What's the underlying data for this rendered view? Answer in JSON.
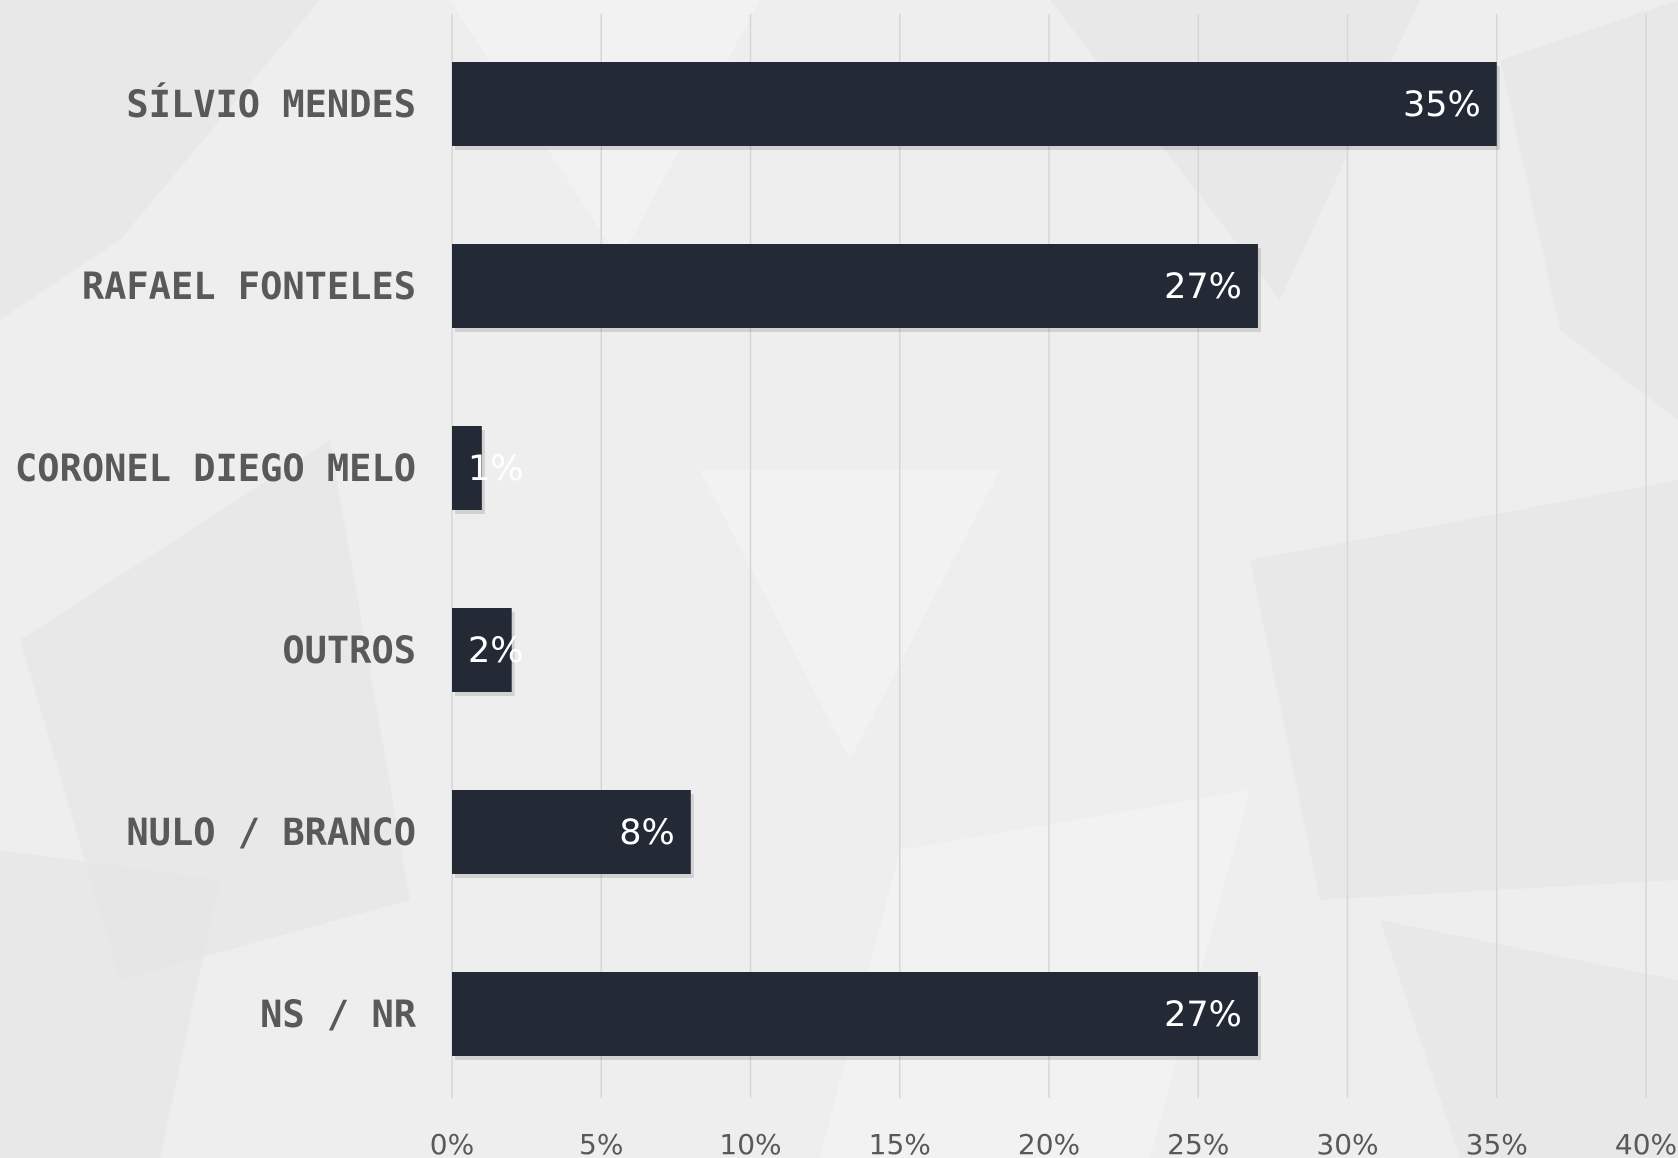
{
  "chart_data": {
    "type": "bar",
    "orientation": "horizontal",
    "categories": [
      "SÍLVIO MENDES",
      "RAFAEL FONTELES",
      "CORONEL DIEGO MELO",
      "OUTROS",
      "NULO / BRANCO",
      "NS / NR"
    ],
    "values": [
      35,
      27,
      1,
      2,
      8,
      27
    ],
    "value_labels": [
      "35%",
      "27%",
      "1%",
      "2%",
      "8%",
      "27%"
    ],
    "xlim": [
      0,
      40
    ],
    "x_ticks": [
      0,
      5,
      10,
      15,
      20,
      25,
      30,
      35,
      40
    ],
    "x_tick_labels": [
      "0%",
      "5%",
      "10%",
      "15%",
      "20%",
      "25%",
      "30%",
      "35%",
      "40%"
    ],
    "grid": true,
    "legend": "none",
    "title": "",
    "xlabel": "",
    "ylabel": "",
    "colors": {
      "bar": "#232a36",
      "background": "#eeeeee",
      "category_text": "#595959",
      "tick_text": "#595959",
      "value_text": "#ffffff",
      "gridline": "#d6d6d6"
    }
  }
}
